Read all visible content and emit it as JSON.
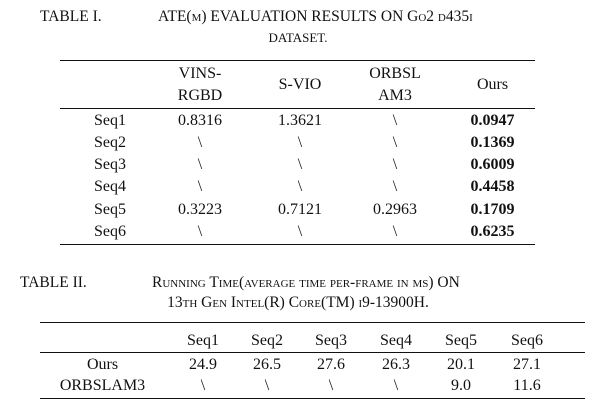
{
  "table1": {
    "label": "TABLE I.",
    "title_line1": "ATE(m) EVALUATION RESULTS ON Go2 d435i",
    "title_line2": "DATASET.",
    "headers": [
      {
        "line1": "VINS-",
        "line2": "RGBD"
      },
      {
        "line1": "S-VIO",
        "line2": ""
      },
      {
        "line1": "ORBSL",
        "line2": "AM3"
      },
      {
        "line1": "Ours",
        "line2": ""
      }
    ],
    "rows": [
      {
        "label": "Seq1",
        "values": [
          "0.8316",
          "1.3621",
          "\\",
          "0.0947"
        ]
      },
      {
        "label": "Seq2",
        "values": [
          "\\",
          "\\",
          "\\",
          "0.1369"
        ]
      },
      {
        "label": "Seq3",
        "values": [
          "\\",
          "\\",
          "\\",
          "0.6009"
        ]
      },
      {
        "label": "Seq4",
        "values": [
          "\\",
          "\\",
          "\\",
          "0.4458"
        ]
      },
      {
        "label": "Seq5",
        "values": [
          "0.3223",
          "0.7121",
          "0.2963",
          "0.1709"
        ]
      },
      {
        "label": "Seq6",
        "values": [
          "\\",
          "\\",
          "\\",
          "0.6235"
        ]
      }
    ]
  },
  "table2": {
    "label": "TABLE II.",
    "title_line1": "Running Time(average time per-frame in ms) ON",
    "title_line2": "13th Gen Intel(R) Core(TM) i9-13900H.",
    "headers": [
      "Seq1",
      "Seq2",
      "Seq3",
      "Seq4",
      "Seq5",
      "Seq6"
    ],
    "rows": [
      {
        "label": "Ours",
        "values": [
          "24.9",
          "26.5",
          "27.6",
          "26.3",
          "20.1",
          "27.1"
        ]
      },
      {
        "label": "ORBSLAM3",
        "values": [
          "\\",
          "\\",
          "\\",
          "\\",
          "9.0",
          "11.6"
        ]
      }
    ]
  }
}
